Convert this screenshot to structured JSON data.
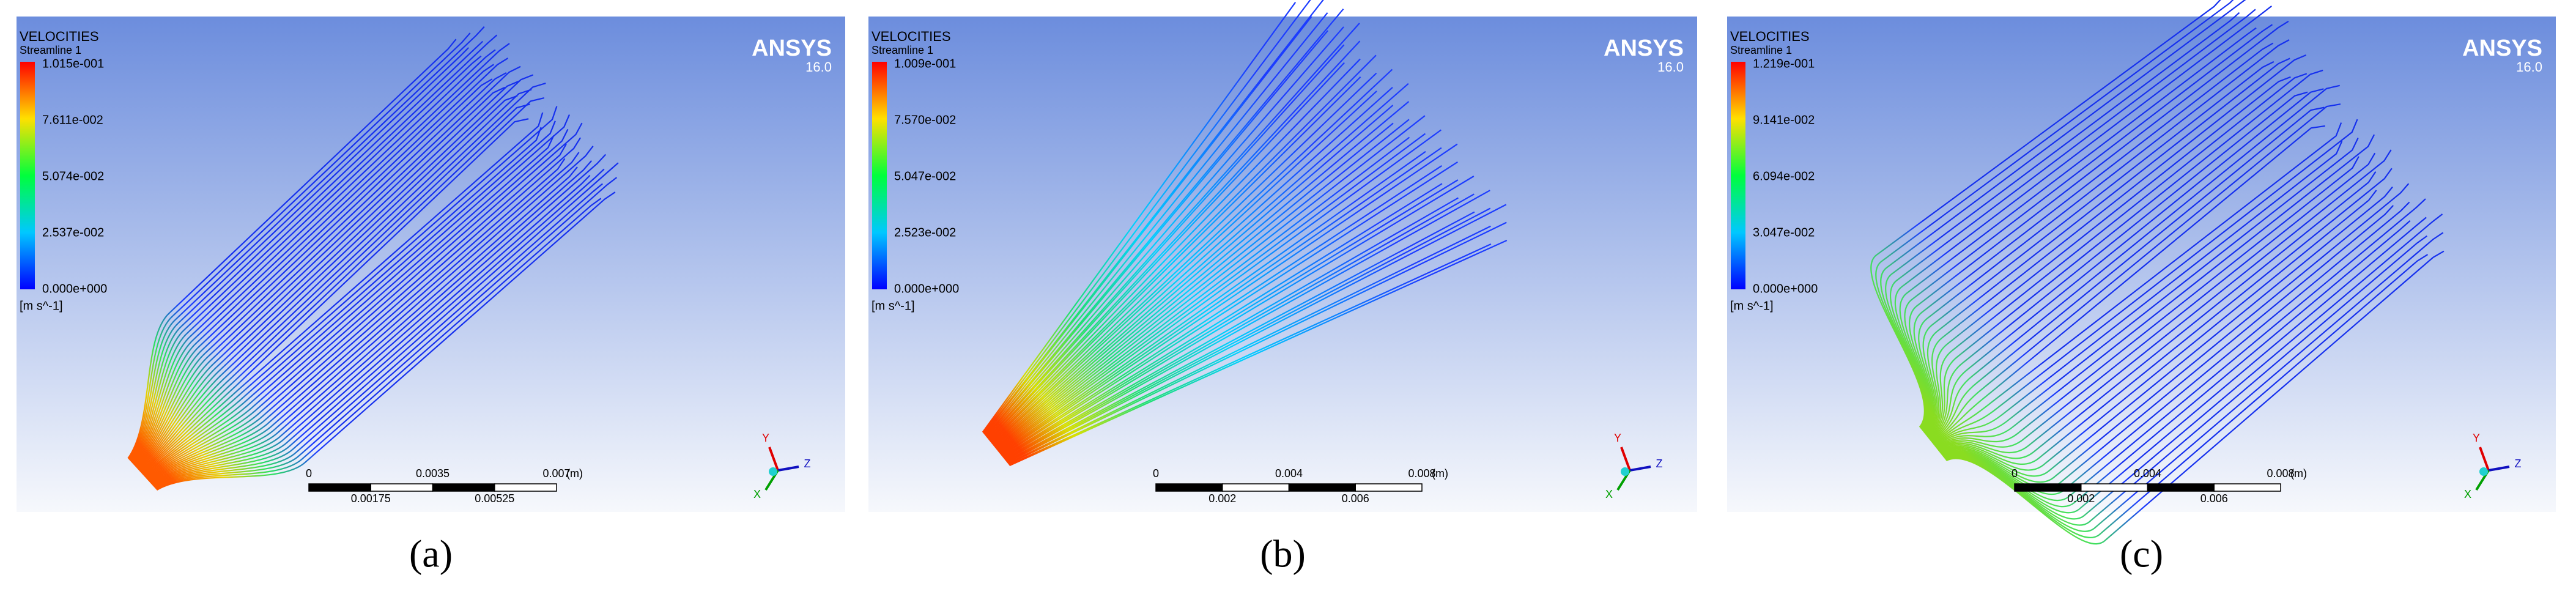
{
  "panels": [
    {
      "title": "VELOCITIES",
      "subtitle": "Streamline 1",
      "legend_labels": [
        "1.015e-001",
        "7.611e-002",
        "5.074e-002",
        "2.537e-002",
        "0.000e+000"
      ],
      "unit": "[m s^-1]",
      "brand": "ANSYS",
      "version": "16.0",
      "scale_top": [
        "0",
        "0.0035",
        "0.007"
      ],
      "scale_bottom": [
        "0.00175",
        "0.00525"
      ],
      "scale_unit": "(m)",
      "triad": [
        "Y",
        "Z",
        "X"
      ],
      "caption": "(a)"
    },
    {
      "title": "VELOCITIES",
      "subtitle": "Streamline 1",
      "legend_labels": [
        "1.009e-001",
        "7.570e-002",
        "5.047e-002",
        "2.523e-002",
        "0.000e+000"
      ],
      "unit": "[m s^-1]",
      "brand": "ANSYS",
      "version": "16.0",
      "scale_top": [
        "0",
        "0.004",
        "0.008"
      ],
      "scale_bottom": [
        "0.002",
        "0.006"
      ],
      "scale_unit": "(m)",
      "triad": [
        "Y",
        "Z",
        "X"
      ],
      "caption": "(b)"
    },
    {
      "title": "VELOCITIES",
      "subtitle": "Streamline 1",
      "legend_labels": [
        "1.219e-001",
        "9.141e-002",
        "6.094e-002",
        "3.047e-002",
        "0.000e+000"
      ],
      "unit": "[m s^-1]",
      "brand": "ANSYS",
      "version": "16.0",
      "scale_top": [
        "0",
        "0.004",
        "0.008"
      ],
      "scale_bottom": [
        "0.002",
        "0.006"
      ],
      "scale_unit": "(m)",
      "triad": [
        "Y",
        "Z",
        "X"
      ],
      "caption": "(c)"
    }
  ]
}
